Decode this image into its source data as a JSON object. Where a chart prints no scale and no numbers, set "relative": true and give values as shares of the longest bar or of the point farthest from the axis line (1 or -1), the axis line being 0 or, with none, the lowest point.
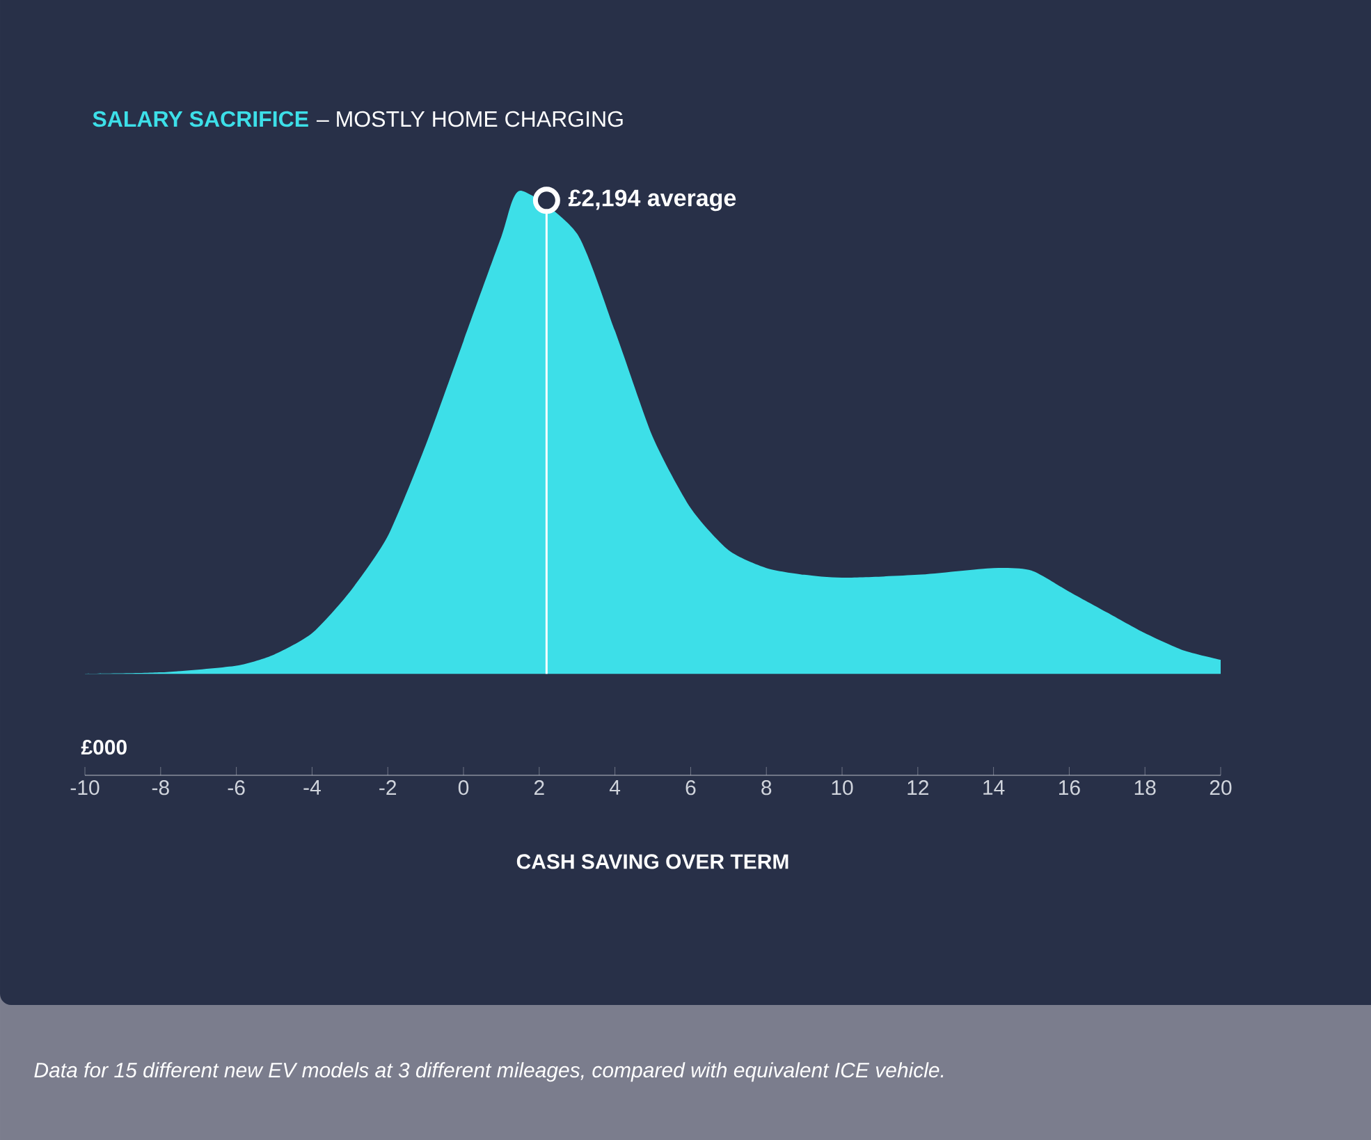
{
  "chart_data": {
    "type": "area",
    "title": "SALARY SACRIFICE",
    "subtitle": "– MOSTLY HOME CHARGING",
    "xlabel": "CASH SAVING OVER TERM",
    "relative": true,
    "color": "#3ddfe8",
    "x": [
      -10,
      -8,
      -6,
      -5,
      -4,
      -3,
      -2,
      -1,
      0,
      1,
      1.5,
      3,
      4,
      5,
      6,
      7,
      8,
      9,
      10,
      12,
      14,
      15,
      16,
      17,
      18,
      19,
      20
    ],
    "values": [
      0,
      0.003,
      0.017,
      0.04,
      0.084,
      0.17,
      0.285,
      0.473,
      0.689,
      0.905,
      1,
      0.911,
      0.71,
      0.49,
      0.343,
      0.256,
      0.219,
      0.205,
      0.199,
      0.205,
      0.219,
      0.214,
      0.17,
      0.127,
      0.084,
      0.049,
      0.029
    ],
    "xlim": [
      -10,
      20
    ],
    "xticks": [
      -10,
      -8,
      -6,
      -4,
      -2,
      0,
      2,
      4,
      6,
      8,
      10,
      12,
      14,
      16,
      18,
      20
    ],
    "ref_lines": [
      {
        "axis": "x",
        "value": 2.194,
        "label": "£2,194 average",
        "color": "#ffffff"
      }
    ],
    "annotations": [
      "£000",
      "Data for 15 different new EV models at 3 different mileages, compared with equivalent ICE vehicle."
    ]
  }
}
